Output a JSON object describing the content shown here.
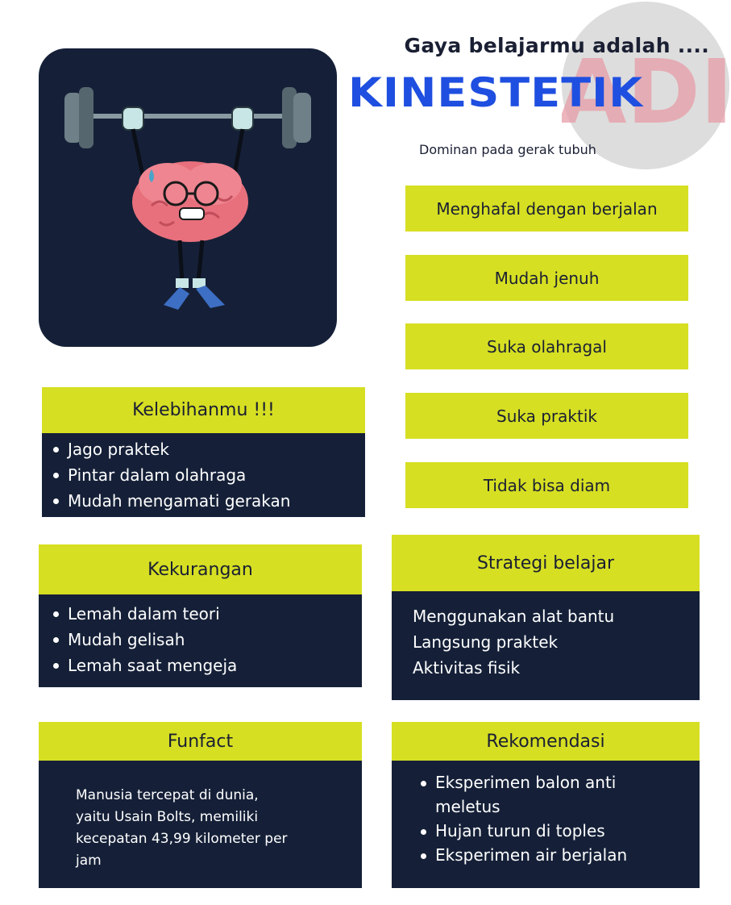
{
  "header": {
    "heading": "Gaya belajarmu adalah ....",
    "title": "KINESTETIK",
    "subtitle": "Dominan pada gerak tubuh"
  },
  "watermark": {
    "text": "ADI"
  },
  "traits": [
    "Menghafal dengan berjalan",
    "Mudah jenuh",
    "Suka olahragal",
    "Suka praktik",
    "Tidak bisa diam"
  ],
  "kelebihan": {
    "title": "Kelebihanmu !!!",
    "items": [
      "Jago praktek",
      " Pintar dalam olahraga",
      "Mudah mengamati gerakan"
    ]
  },
  "kekurangan": {
    "title": "Kekurangan",
    "items": [
      "Lemah dalam teori",
      "Mudah gelisah",
      "Lemah saat mengeja"
    ]
  },
  "strategi": {
    "title": "Strategi belajar",
    "lines": [
      "Menggunakan alat bantu",
      "Langsung praktek",
      "Aktivitas fisik"
    ]
  },
  "funfact": {
    "title": "Funfact",
    "lines": [
      "Manusia tercepat di dunia,",
      "yaitu Usain Bolts, memiliki",
      "kecepatan 43,99 kilometer per",
      "jam"
    ]
  },
  "rekomendasi": {
    "title": "Rekomendasi",
    "items": [
      "Eksperimen balon anti meletus",
      "Hujan turun di toples",
      "Eksperimen air berjalan"
    ]
  },
  "colors": {
    "navy": "#152038",
    "lime": "#d6df22",
    "title_blue": "#1f4fe0"
  }
}
